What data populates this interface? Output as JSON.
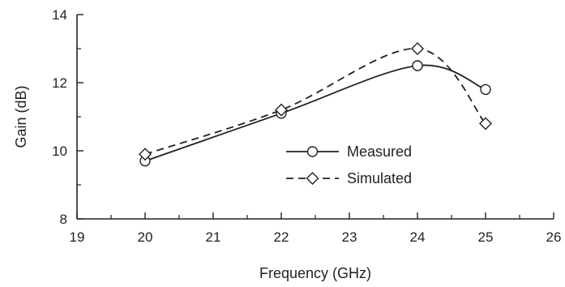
{
  "chart_data": {
    "type": "line",
    "xlabel": "Frequency (GHz)",
    "ylabel": "Gain (dB)",
    "xlim": [
      19,
      26
    ],
    "ylim": [
      8,
      14
    ],
    "xticks": [
      19,
      20,
      21,
      22,
      23,
      24,
      25,
      26
    ],
    "yticks": [
      8,
      10,
      12,
      14
    ],
    "x_tick_labels": [
      "19",
      "20",
      "21",
      "22",
      "23",
      "24",
      "25",
      "26"
    ],
    "y_tick_labels": [
      "8",
      "10",
      "12",
      "14"
    ],
    "grid": false,
    "legend_position": "center-right",
    "series": [
      {
        "name": "Measured",
        "marker": "circle",
        "line": "solid",
        "x": [
          20,
          22,
          24,
          25
        ],
        "y": [
          9.7,
          11.1,
          12.5,
          11.8
        ]
      },
      {
        "name": "Simulated",
        "marker": "diamond",
        "line": "dashed",
        "x": [
          20,
          22,
          24,
          25
        ],
        "y": [
          9.9,
          11.2,
          13.0,
          10.8
        ]
      }
    ]
  }
}
